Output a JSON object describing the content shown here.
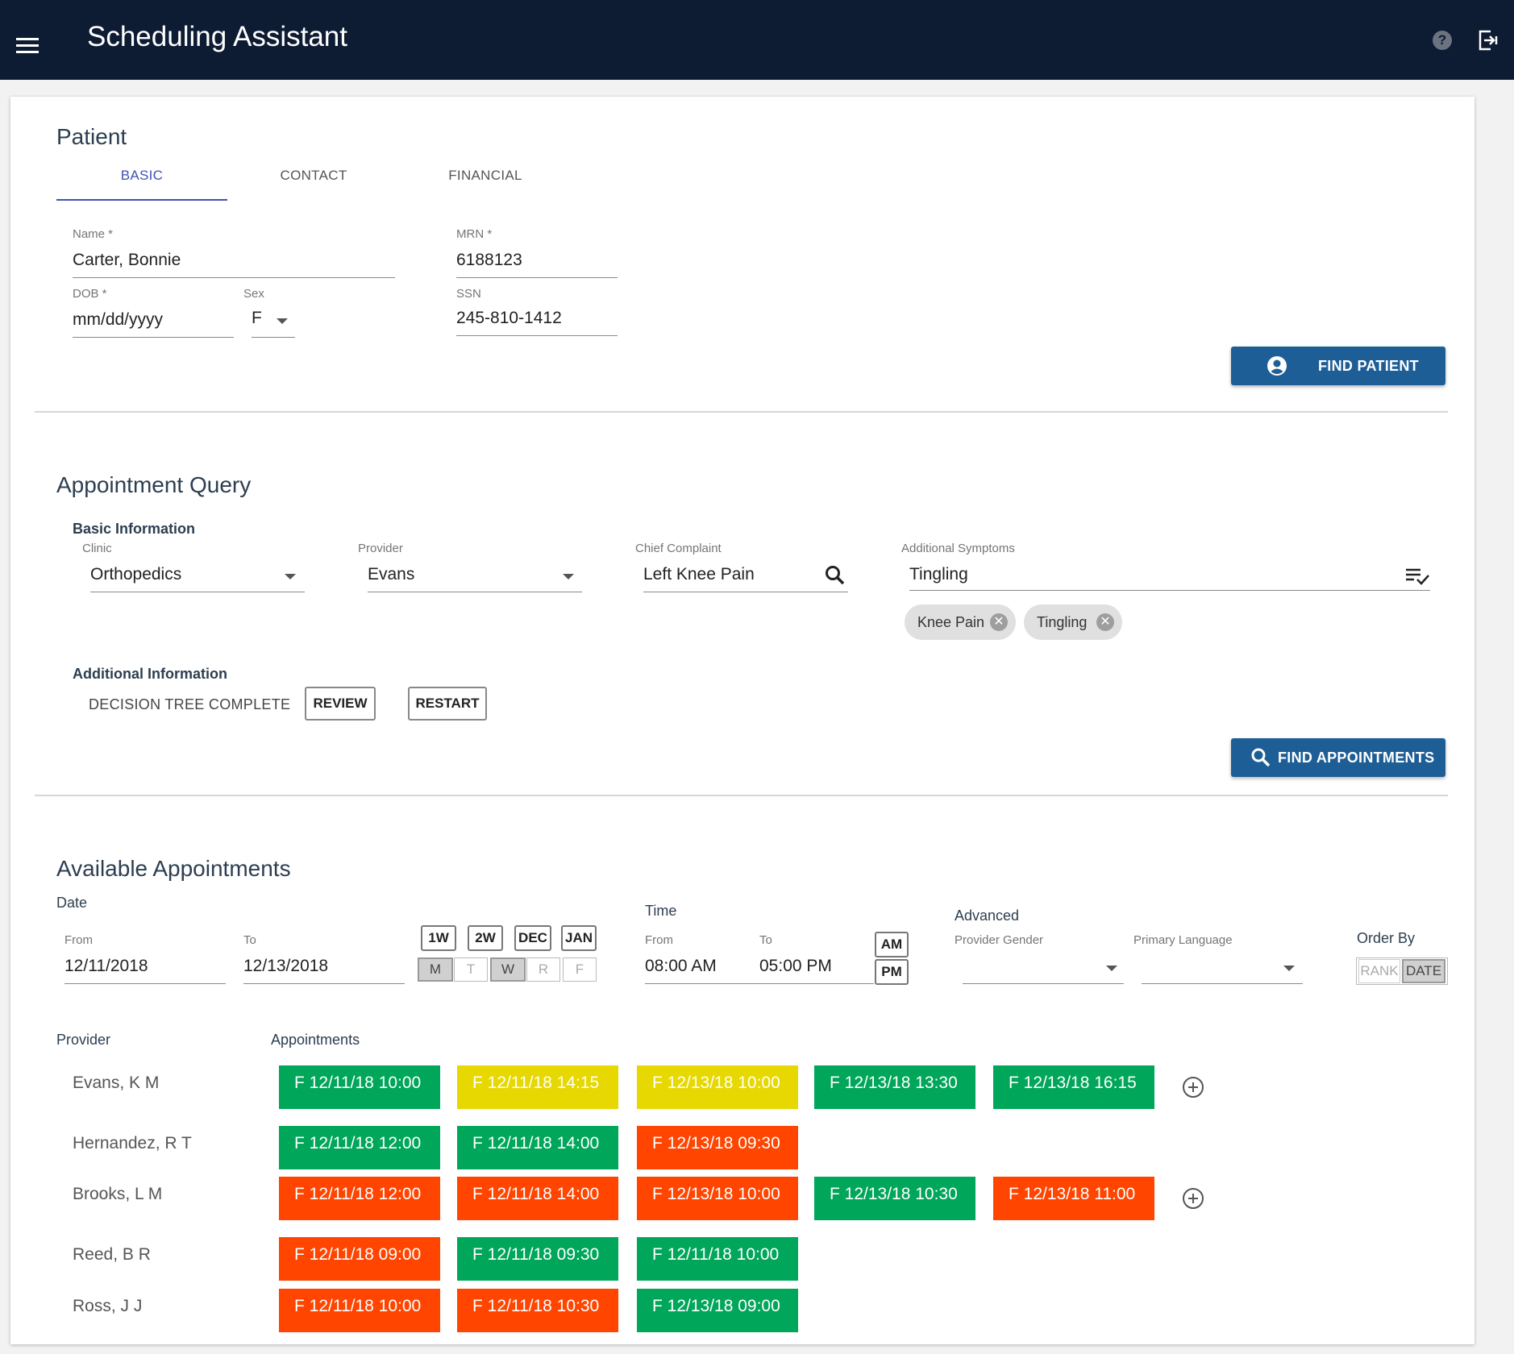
{
  "header": {
    "title": "Scheduling Assistant",
    "menu_icon": "menu-icon",
    "help_icon": "help-icon",
    "exit_icon": "exit-icon",
    "help_glyph": "?"
  },
  "patient": {
    "title": "Patient",
    "tabs": [
      "BASIC",
      "CONTACT",
      "FINANCIAL"
    ],
    "active_tab": "BASIC",
    "name_label": "Name *",
    "name_value": "Carter, Bonnie",
    "mrn_label": "MRN *",
    "mrn_value": "6188123",
    "dob_label": "DOB *",
    "dob_value": "mm/dd/yyyy",
    "sex_label": "Sex",
    "sex_value": "F",
    "ssn_label": "SSN",
    "ssn_value": "245-810-1412",
    "find_button": "FIND PATIENT"
  },
  "query": {
    "title": "Appointment Query",
    "basic_info": "Basic Information",
    "clinic_label": "Clinic",
    "clinic_value": "Orthopedics",
    "provider_label": "Provider",
    "provider_value": "Evans",
    "complaint_label": "Chief Complaint",
    "complaint_value": "Left Knee Pain",
    "symptoms_label": "Additional Symptoms",
    "symptoms_value": "Tingling",
    "chips": [
      "Knee Pain",
      "Tingling"
    ],
    "additional_info": "Additional Information",
    "decision_status": "DECISION TREE COMPLETE",
    "review_button": "REVIEW",
    "restart_button": "RESTART",
    "find_button": "FIND APPOINTMENTS"
  },
  "available": {
    "title": "Available Appointments",
    "date_label": "Date",
    "from_label": "From",
    "from_value": "12/11/2018",
    "to_label": "To",
    "to_value": "12/13/2018",
    "ranges": [
      "1W",
      "2W",
      "DEC",
      "JAN"
    ],
    "days": [
      "M",
      "T",
      "W",
      "R",
      "F"
    ],
    "days_selected": [
      "M",
      "W"
    ],
    "time_label": "Time",
    "time_from_label": "From",
    "time_from_value": "08:00 AM",
    "time_to_label": "To",
    "time_to_value": "05:00 PM",
    "am": "AM",
    "pm": "PM",
    "advanced_label": "Advanced",
    "gender_label": "Provider Gender",
    "gender_value": "",
    "language_label": "Primary Language",
    "language_value": "",
    "order_label": "Order By",
    "order_options": [
      "RANK",
      "DATE"
    ],
    "order_selected": "DATE",
    "provider_col": "Provider",
    "appointments_col": "Appointments",
    "rows": [
      {
        "provider": "Evans, K M",
        "more": true,
        "appts": [
          {
            "label": "F 12/11/18 10:00",
            "status": "green"
          },
          {
            "label": "F 12/11/18 14:15",
            "status": "yellow"
          },
          {
            "label": "F 12/13/18 10:00",
            "status": "yellow"
          },
          {
            "label": "F 12/13/18 13:30",
            "status": "green"
          },
          {
            "label": "F 12/13/18 16:15",
            "status": "green"
          }
        ]
      },
      {
        "provider": "Hernandez, R T",
        "more": false,
        "appts": [
          {
            "label": "F 12/11/18 12:00",
            "status": "green"
          },
          {
            "label": "F 12/11/18 14:00",
            "status": "green"
          },
          {
            "label": "F 12/13/18 09:30",
            "status": "red"
          }
        ]
      },
      {
        "provider": "Brooks, L M",
        "more": true,
        "appts": [
          {
            "label": "F 12/11/18 12:00",
            "status": "red"
          },
          {
            "label": "F 12/11/18 14:00",
            "status": "red"
          },
          {
            "label": "F 12/13/18 10:00",
            "status": "red"
          },
          {
            "label": "F 12/13/18 10:30",
            "status": "green"
          },
          {
            "label": "F 12/13/18 11:00",
            "status": "red"
          }
        ]
      },
      {
        "provider": "Reed, B R",
        "more": false,
        "appts": [
          {
            "label": "F 12/11/18 09:00",
            "status": "red"
          },
          {
            "label": "F 12/11/18 09:30",
            "status": "green"
          },
          {
            "label": "F 12/11/18 10:00",
            "status": "green"
          }
        ]
      },
      {
        "provider": "Ross, J J",
        "more": false,
        "appts": [
          {
            "label": "F 12/11/18 10:00",
            "status": "red"
          },
          {
            "label": "F 12/11/18 10:30",
            "status": "red"
          },
          {
            "label": "F 12/13/18 09:00",
            "status": "green"
          }
        ]
      }
    ]
  },
  "colors": {
    "header_bg": "#0d1b33",
    "primary_button": "#1e5e96",
    "tab_active": "#3f51b5",
    "green": "#00a65a",
    "yellow": "#e6d800",
    "red": "#ff4500"
  }
}
